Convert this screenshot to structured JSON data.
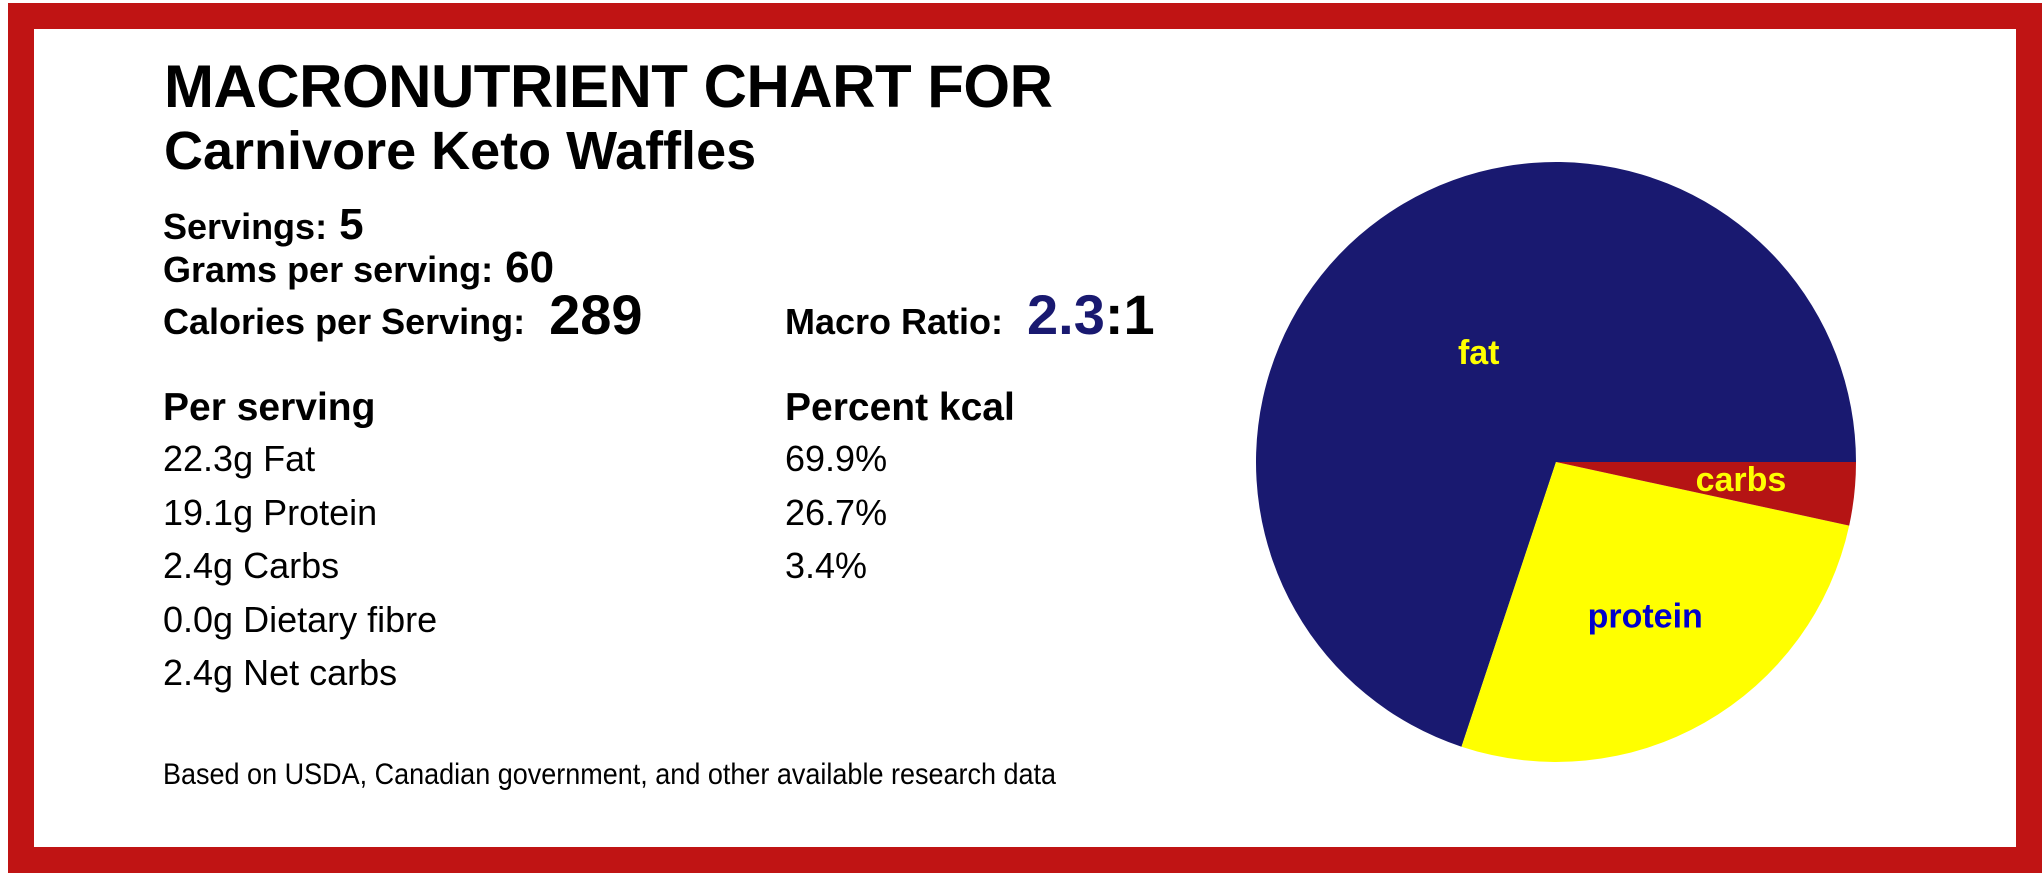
{
  "page": {
    "background_color": "#ffffff",
    "border_color": "#c01414"
  },
  "header": {
    "title": "MACRONUTRIENT CHART FOR",
    "subtitle": "Carnivore Keto Waffles"
  },
  "stats": {
    "servings_label": "Servings:",
    "servings_value": "5",
    "grams_label": "Grams per serving:",
    "grams_value": "60",
    "calories_label": "Calories per Serving:",
    "calories_value": "289",
    "macro_ratio_label": "Macro Ratio:",
    "macro_ratio_value": "2.3",
    "macro_ratio_suffix": ":1",
    "macro_ratio_value_color": "#191970"
  },
  "table": {
    "col1_header": "Per serving",
    "col2_header": "Percent kcal",
    "rows": [
      {
        "amount": "22.3g Fat",
        "percent": "69.9%"
      },
      {
        "amount": "19.1g Protein",
        "percent": "26.7%"
      },
      {
        "amount": "2.4g Carbs",
        "percent": "3.4%"
      },
      {
        "amount": "0.0g Dietary fibre",
        "percent": ""
      },
      {
        "amount": "2.4g Net carbs",
        "percent": ""
      }
    ]
  },
  "footer": {
    "note": "Based on USDA, Canadian government, and other available research data"
  },
  "chart_data": {
    "type": "pie",
    "title": "",
    "labels": [
      "fat",
      "protein",
      "carbs"
    ],
    "values": [
      69.9,
      26.7,
      3.4
    ],
    "unit": "percent of kcal",
    "colors": [
      "#191970",
      "#ffff00",
      "#b51414"
    ],
    "label_colors": [
      "#ffff00",
      "#0000cd",
      "#ffff00"
    ],
    "label_distances": [
      0.44,
      0.6,
      0.62
    ],
    "start_angle": 0,
    "counterclockwise": true,
    "legend_position": "none",
    "radius_px": 300
  }
}
